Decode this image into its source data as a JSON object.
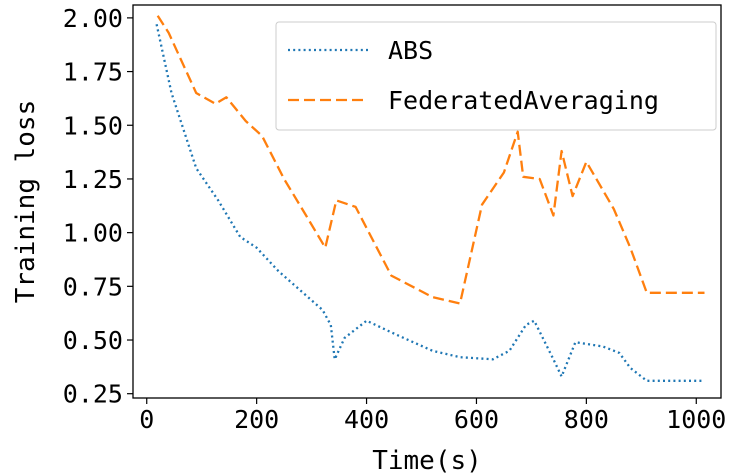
{
  "chart_data": {
    "type": "line",
    "title": "",
    "xlabel": "Time(s)",
    "ylabel": "Training loss",
    "xlim": [
      -25,
      1045
    ],
    "ylim": [
      0.23,
      2.06
    ],
    "xticks": [
      0,
      200,
      400,
      600,
      800,
      1000
    ],
    "xtick_labels": [
      "0",
      "200",
      "400",
      "600",
      "800",
      "1000"
    ],
    "yticks": [
      0.25,
      0.5,
      0.75,
      1.0,
      1.25,
      1.5,
      1.75,
      2.0
    ],
    "ytick_labels": [
      "0.25",
      "0.50",
      "0.75",
      "1.00",
      "1.25",
      "1.50",
      "1.75",
      "2.00"
    ],
    "grid": false,
    "legend_position": "top-right",
    "series": [
      {
        "name": "ABS",
        "color": "#1f77b4",
        "style": "dotted",
        "x": [
          18,
          45,
          90,
          130,
          170,
          200,
          240,
          280,
          320,
          335,
          342,
          360,
          400,
          450,
          520,
          570,
          630,
          660,
          690,
          705,
          740,
          755,
          780,
          830,
          860,
          880,
          910,
          1015
        ],
        "y": [
          1.97,
          1.65,
          1.3,
          1.15,
          0.98,
          0.93,
          0.82,
          0.73,
          0.64,
          0.57,
          0.41,
          0.51,
          0.59,
          0.53,
          0.45,
          0.42,
          0.41,
          0.45,
          0.57,
          0.59,
          0.41,
          0.33,
          0.49,
          0.47,
          0.44,
          0.37,
          0.31,
          0.31
        ]
      },
      {
        "name": "FederatedAveraging",
        "color": "#ff7f0e",
        "style": "dashed",
        "x": [
          20,
          40,
          90,
          125,
          145,
          180,
          210,
          250,
          290,
          325,
          345,
          380,
          445,
          520,
          570,
          610,
          650,
          675,
          685,
          715,
          740,
          755,
          775,
          800,
          850,
          880,
          910,
          1015
        ],
        "y": [
          2.01,
          1.93,
          1.65,
          1.6,
          1.63,
          1.52,
          1.45,
          1.25,
          1.08,
          0.93,
          1.15,
          1.12,
          0.8,
          0.7,
          0.67,
          1.13,
          1.28,
          1.47,
          1.26,
          1.25,
          1.08,
          1.38,
          1.17,
          1.33,
          1.11,
          0.93,
          0.72,
          0.72
        ]
      }
    ]
  }
}
